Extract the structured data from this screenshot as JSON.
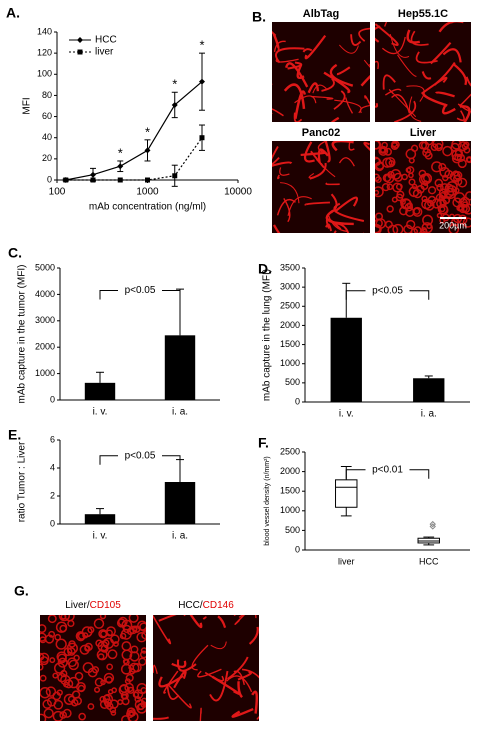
{
  "chart_data": [
    {
      "type": "line",
      "panel_label": "A.",
      "xlabel": "mAb concentration (ng/ml)",
      "ylabel": "MFI",
      "xscale": "log",
      "xlim": [
        100,
        10000
      ],
      "xticks": [
        100,
        1000,
        10000
      ],
      "ylim": [
        0,
        140
      ],
      "yticks": [
        0,
        20,
        40,
        60,
        80,
        100,
        120,
        140
      ],
      "legend": "upper left",
      "series": [
        {
          "name": "HCC",
          "color": "#000000",
          "marker": "diamond",
          "linestyle": "solid",
          "x": [
            125,
            250,
            500,
            1000,
            2000,
            4000
          ],
          "values": [
            0,
            5,
            13,
            28,
            71,
            93
          ],
          "errors": [
            1,
            6,
            5,
            10,
            12,
            27
          ],
          "significance": [
            null,
            null,
            "*",
            "*",
            "*",
            "*"
          ]
        },
        {
          "name": "liver",
          "color": "#000000",
          "marker": "square",
          "linestyle": "dotted",
          "x": [
            125,
            250,
            500,
            1000,
            2000,
            4000
          ],
          "values": [
            0,
            0,
            0,
            0,
            4,
            40
          ],
          "errors": [
            0,
            0,
            0,
            0,
            10,
            12
          ]
        }
      ]
    },
    {
      "type": "bar",
      "panel_label": "C.",
      "ylabel": "mAb capture in the tumor (MFI)",
      "categories": [
        "i. v.",
        "i. a."
      ],
      "values": [
        650,
        2450
      ],
      "errors": [
        400,
        1750
      ],
      "color": "#000000",
      "ylim": [
        0,
        5000
      ],
      "yticks": [
        0,
        1000,
        2000,
        3000,
        4000,
        5000
      ],
      "annotation": "p<0.05"
    },
    {
      "type": "bar",
      "panel_label": "D.",
      "ylabel": "mAb capture in the lung (MFI)",
      "categories": [
        "i. v.",
        "i. a."
      ],
      "values": [
        2200,
        620
      ],
      "errors": [
        900,
        60
      ],
      "color": "#000000",
      "ylim": [
        0,
        3500
      ],
      "yticks": [
        0,
        500,
        1000,
        1500,
        2000,
        2500,
        3000,
        3500
      ],
      "annotation": "p<0.05"
    },
    {
      "type": "bar",
      "panel_label": "E.",
      "ylabel": "ratio Tumor : Liver",
      "categories": [
        "i. v.",
        "i. a."
      ],
      "values": [
        0.7,
        3.0
      ],
      "errors": [
        0.4,
        1.6
      ],
      "color": "#000000",
      "ylim": [
        0,
        6
      ],
      "yticks": [
        0,
        2,
        4,
        6
      ],
      "annotation": "p<0.05"
    },
    {
      "type": "box",
      "panel_label": "F.",
      "ylabel": "blood vessel density (n/mm²)",
      "categories": [
        "liver",
        "HCC"
      ],
      "min": [
        870,
        130
      ],
      "q1": [
        1090,
        180
      ],
      "median": [
        1600,
        230
      ],
      "q3": [
        1790,
        300
      ],
      "max": [
        2130,
        330
      ],
      "outliers": [
        [],
        [
          600,
          660
        ]
      ],
      "ylim": [
        0,
        2500
      ],
      "yticks": [
        0,
        500,
        1000,
        1500,
        2000,
        2500
      ],
      "annotation": "p<0.01"
    }
  ],
  "micrographs": {
    "panel_label": "B.",
    "images": [
      {
        "label": "AlbTag"
      },
      {
        "label": "Hep55.1C"
      },
      {
        "label": "Panc02"
      },
      {
        "label": "Liver"
      }
    ],
    "scale_bar": "200µm"
  },
  "stains": {
    "panel_label": "G.",
    "marker_color": "#e00000",
    "images": [
      {
        "tissue": "Liver/",
        "marker": "CD105"
      },
      {
        "tissue": "HCC/",
        "marker": "CD146"
      }
    ]
  }
}
